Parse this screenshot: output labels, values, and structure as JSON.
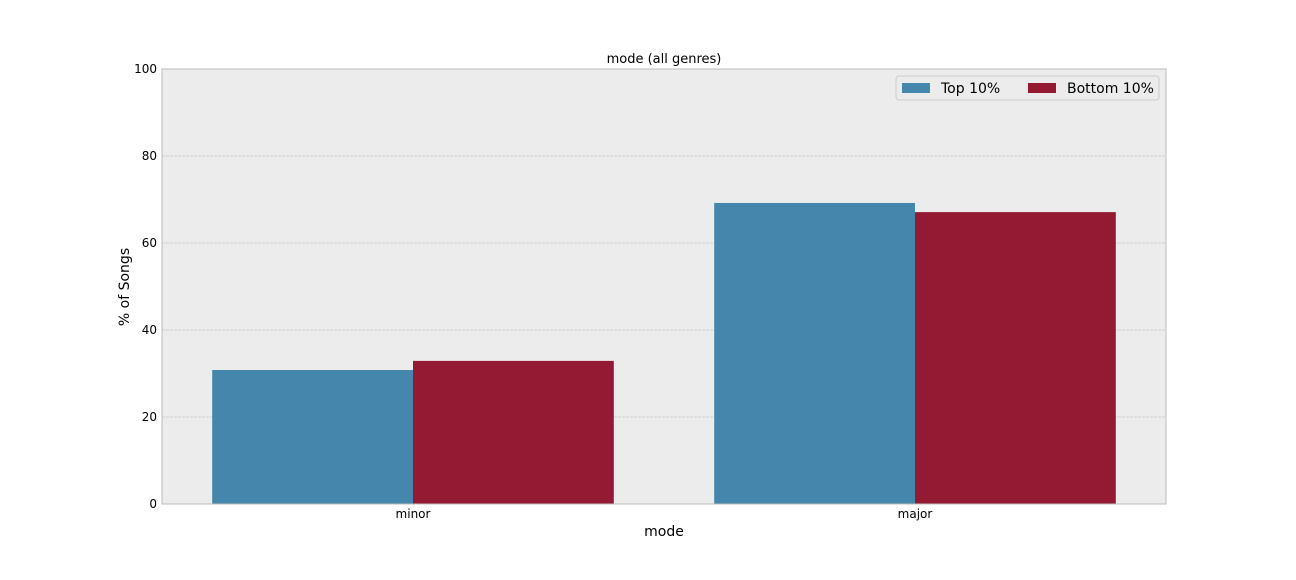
{
  "chart_data": {
    "type": "bar",
    "title": "mode (all genres)",
    "xlabel": "mode",
    "ylabel": "% of Songs",
    "categories": [
      "minor",
      "major"
    ],
    "series": [
      {
        "name": "Top 10%",
        "values": [
          30.8,
          69.2
        ],
        "color": "#4586ac"
      },
      {
        "name": "Bottom 10%",
        "values": [
          32.9,
          67.1
        ],
        "color": "#931a32"
      }
    ],
    "ylim": [
      0,
      100
    ],
    "yticks": [
      "0",
      "20",
      "40",
      "60",
      "80",
      "100"
    ],
    "grid": true,
    "legend_position": "top-right",
    "plot_background": "#ececec"
  }
}
